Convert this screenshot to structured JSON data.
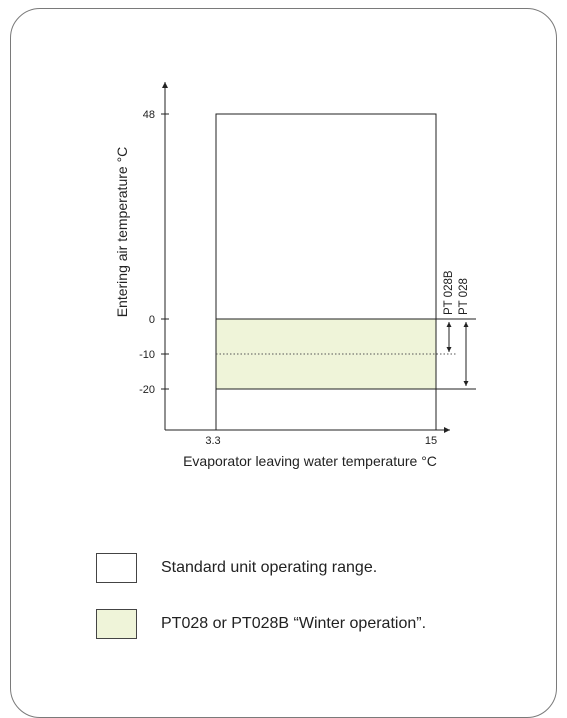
{
  "diagram": {
    "ylabel": "Entering air temperature °C",
    "xlabel": "Evaporator leaving water temperature °C",
    "y_ticks": [
      "48",
      "0",
      "-10",
      "-20"
    ],
    "x_ticks": [
      "3.3",
      "15"
    ],
    "pt_labels": [
      "PT 028B",
      "PT 028"
    ],
    "colors": {
      "standard_fill": "#ffffff",
      "winter_fill": "#eff4d9",
      "line": "#222222"
    }
  },
  "chart_data": {
    "type": "area",
    "xlabel": "Evaporator leaving water temperature °C",
    "ylabel": "Entering air temperature °C",
    "xlim": [
      3.3,
      15
    ],
    "ylim": [
      -20,
      48
    ],
    "regions": [
      {
        "name": "Standard unit operating range.",
        "x": [
          3.3,
          15
        ],
        "y": [
          0,
          48
        ]
      },
      {
        "name": "PT028 or PT028B “Winter operation”.",
        "x": [
          3.3,
          15
        ],
        "y": [
          -20,
          0
        ]
      }
    ],
    "markers": [
      {
        "label": "PT 028B",
        "y_range": [
          -10,
          0
        ]
      },
      {
        "label": "PT 028",
        "y_range": [
          -20,
          0
        ]
      }
    ]
  },
  "legend": {
    "items": [
      {
        "text": "Standard unit operating range."
      },
      {
        "text": "PT028 or PT028B “Winter operation”."
      }
    ]
  }
}
